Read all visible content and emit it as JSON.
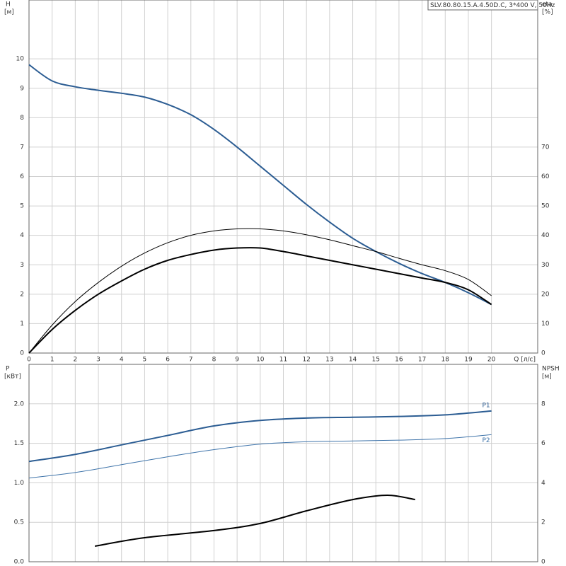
{
  "chart_data": [
    {
      "type": "line",
      "title": "SLV.80.80.15.A.4.50D.C, 3*400 V, 50Hz",
      "ylabel": "H",
      "yunit": "[м]",
      "y2label": "eta",
      "y2unit": "[%]",
      "xlabel": "Q [л/с]",
      "x": [
        0,
        1,
        2,
        3,
        4,
        5,
        6,
        7,
        8,
        9,
        10,
        11,
        12,
        13,
        14,
        15,
        16,
        17,
        18,
        19,
        20
      ],
      "xlim": [
        0,
        22
      ],
      "xticks": [
        0,
        1,
        2,
        3,
        4,
        5,
        6,
        7,
        8,
        9,
        10,
        11,
        12,
        13,
        14,
        15,
        16,
        17,
        18,
        19,
        20
      ],
      "xtick_labels": true,
      "ylim": [
        0,
        12
      ],
      "yticks": [
        0,
        1,
        2,
        3,
        4,
        5,
        6,
        7,
        8,
        9,
        10
      ],
      "y2lim": [
        0,
        120
      ],
      "y2ticks": [
        0,
        10,
        20,
        30,
        40,
        50,
        60,
        70
      ],
      "grid": true,
      "series": [
        {
          "color": "#2c5d93",
          "line_width": 2,
          "values": [
            9.8,
            9.25,
            9.05,
            8.93,
            8.83,
            8.7,
            8.45,
            8.1,
            7.6,
            7.0,
            6.35,
            5.7,
            5.05,
            4.45,
            3.9,
            3.45,
            3.05,
            2.7,
            2.4,
            2.05,
            1.65
          ]
        },
        {
          "color": "#000000",
          "line_width": 1,
          "axis": "y2",
          "values": [
            0,
            9.5,
            17.5,
            24,
            29.5,
            34,
            37.5,
            40,
            41.5,
            42.2,
            42.2,
            41.5,
            40.2,
            38.5,
            36.5,
            34.5,
            32.2,
            30,
            28,
            25,
            19.5
          ]
        },
        {
          "color": "#000000",
          "line_width": 2,
          "axis": "y2",
          "values": [
            0,
            8,
            14.5,
            20,
            24.5,
            28.5,
            31.5,
            33.5,
            35,
            35.7,
            35.7,
            34.5,
            33,
            31.5,
            30,
            28.5,
            27,
            25.5,
            24,
            21.5,
            16.5
          ]
        }
      ]
    },
    {
      "type": "line",
      "ylabel": "P",
      "yunit": "[кВт]",
      "y2label": "NPSH",
      "y2unit": "[м]",
      "xlim": [
        0,
        22
      ],
      "xticks": [
        0,
        1,
        2,
        3,
        4,
        5,
        6,
        7,
        8,
        9,
        10,
        11,
        12,
        13,
        14,
        15,
        16,
        17,
        18,
        19,
        20
      ],
      "xtick_labels": false,
      "ylim": [
        0,
        2.5
      ],
      "yticks": [
        {
          "value": 0,
          "label": "0.0"
        },
        0.5,
        {
          "value": 1,
          "label": "1.0"
        },
        1.5,
        {
          "value": 2,
          "label": "2.0"
        }
      ],
      "y2lim": [
        0,
        10
      ],
      "y2ticks": [
        0,
        2,
        4,
        6,
        8
      ],
      "grid": true,
      "series": [
        {
          "name": "P1",
          "color": "#2c5d93",
          "line_width": 2,
          "x": [
            0,
            2,
            4,
            6,
            8,
            10,
            12,
            14,
            16,
            18,
            20
          ],
          "values": [
            1.27,
            1.36,
            1.48,
            1.6,
            1.72,
            1.79,
            1.82,
            1.83,
            1.84,
            1.86,
            1.91
          ]
        },
        {
          "name": "P2",
          "color": "#3f74aa",
          "line_width": 1,
          "x": [
            0,
            2,
            4,
            6,
            8,
            10,
            12,
            14,
            16,
            18,
            20
          ],
          "values": [
            1.06,
            1.13,
            1.23,
            1.33,
            1.42,
            1.49,
            1.52,
            1.53,
            1.54,
            1.56,
            1.61
          ]
        },
        {
          "color": "#000000",
          "line_width": 2,
          "axis": "y2",
          "x": [
            2.85,
            5,
            8,
            10,
            12,
            14,
            15.5,
            16.7
          ],
          "values": [
            0.79,
            1.22,
            1.58,
            1.94,
            2.58,
            3.15,
            3.37,
            3.15
          ]
        }
      ]
    }
  ]
}
